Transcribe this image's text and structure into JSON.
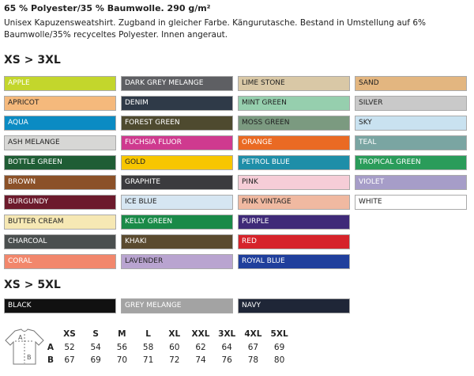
{
  "header": {
    "title": "65 % Polyester/35 % Baumwolle. 290 g/m²",
    "description": "Unisex Kapuzensweatshirt. Zugband in gleicher Farbe. Kängurutasche. Bestand in Umstellung auf 6% Baumwolle/35% recyceltes Polyester. Innen angeraut."
  },
  "sections": [
    {
      "heading": "XS > 3XL",
      "columns": [
        [
          {
            "name": "APPLE",
            "color": "#c3d62c",
            "text_color": "#ffffff"
          },
          {
            "name": "APRICOT",
            "color": "#f5b97c",
            "text_color": "#222222"
          },
          {
            "name": "AQUA",
            "color": "#0b8bc3",
            "text_color": "#ffffff"
          },
          {
            "name": "ASH MELANGE",
            "color": "#d7d7d5",
            "text_color": "#222222"
          },
          {
            "name": "BOTTLE GREEN",
            "color": "#1f5d35",
            "text_color": "#ffffff"
          },
          {
            "name": "BROWN",
            "color": "#8b5128",
            "text_color": "#ffffff"
          },
          {
            "name": "BURGUNDY",
            "color": "#6c1a2c",
            "text_color": "#ffffff"
          },
          {
            "name": "BUTTER CREAM",
            "color": "#f6e8b4",
            "text_color": "#222222"
          },
          {
            "name": "CHARCOAL",
            "color": "#4a4f4f",
            "text_color": "#ffffff"
          },
          {
            "name": "CORAL",
            "color": "#f2876c",
            "text_color": "#ffffff"
          }
        ],
        [
          {
            "name": "DARK GREY MELANGE",
            "color": "#5e5f63",
            "text_color": "#ffffff"
          },
          {
            "name": "DENIM",
            "color": "#2f3a48",
            "text_color": "#ffffff"
          },
          {
            "name": "FOREST GREEN",
            "color": "#4e4a2f",
            "text_color": "#ffffff"
          },
          {
            "name": "FUCHSIA FLUOR",
            "color": "#cf3a8f",
            "text_color": "#ffffff"
          },
          {
            "name": "GOLD",
            "color": "#f7c600",
            "text_color": "#222222"
          },
          {
            "name": "GRAPHITE",
            "color": "#3b3b3e",
            "text_color": "#ffffff"
          },
          {
            "name": "ICE BLUE",
            "color": "#d6e6f2",
            "text_color": "#222222"
          },
          {
            "name": "KELLY GREEN",
            "color": "#1a8a48",
            "text_color": "#ffffff"
          },
          {
            "name": "KHAKI",
            "color": "#5a4a2f",
            "text_color": "#ffffff"
          },
          {
            "name": "LAVENDER",
            "color": "#b9a4d0",
            "text_color": "#222222"
          }
        ],
        [
          {
            "name": "LIME STONE",
            "color": "#d9c8a6",
            "text_color": "#222222"
          },
          {
            "name": "MINT GREEN",
            "color": "#96cfae",
            "text_color": "#222222"
          },
          {
            "name": "MOSS GREEN",
            "color": "#7b9a80",
            "text_color": "#222222"
          },
          {
            "name": "ORANGE",
            "color": "#ea6a23",
            "text_color": "#ffffff"
          },
          {
            "name": "PETROL BLUE",
            "color": "#1e8ea8",
            "text_color": "#ffffff"
          },
          {
            "name": "PINK",
            "color": "#f6cdd7",
            "text_color": "#222222"
          },
          {
            "name": "PINK VINTAGE",
            "color": "#f0b9a1",
            "text_color": "#222222"
          },
          {
            "name": "PURPLE",
            "color": "#3f2a78",
            "text_color": "#ffffff"
          },
          {
            "name": "RED",
            "color": "#d6232b",
            "text_color": "#ffffff"
          },
          {
            "name": "ROYAL BLUE",
            "color": "#203f9c",
            "text_color": "#ffffff"
          }
        ],
        [
          {
            "name": "SAND",
            "color": "#e3b680",
            "text_color": "#222222"
          },
          {
            "name": "SILVER",
            "color": "#c9c9c9",
            "text_color": "#222222"
          },
          {
            "name": "SKY",
            "color": "#c9e2f0",
            "text_color": "#222222"
          },
          {
            "name": "TEAL",
            "color": "#7aa5a2",
            "text_color": "#ffffff"
          },
          {
            "name": "TROPICAL GREEN",
            "color": "#2a9c5a",
            "text_color": "#ffffff"
          },
          {
            "name": "VIOLET",
            "color": "#a69dc8",
            "text_color": "#ffffff"
          },
          {
            "name": "WHITE",
            "color": "#ffffff",
            "text_color": "#222222"
          }
        ]
      ]
    },
    {
      "heading": "XS > 5XL",
      "columns": [
        [
          {
            "name": "BLACK",
            "color": "#111111",
            "text_color": "#ffffff"
          }
        ],
        [
          {
            "name": "GREY MELANGE",
            "color": "#a3a3a3",
            "text_color": "#ffffff"
          }
        ],
        [
          {
            "name": "NAVY",
            "color": "#1f2637",
            "text_color": "#ffffff"
          }
        ]
      ]
    }
  ],
  "size_table": {
    "sizes": [
      "XS",
      "S",
      "M",
      "L",
      "XL",
      "XXL",
      "3XL",
      "4XL",
      "5XL"
    ],
    "rows": [
      {
        "label": "A",
        "values": [
          52,
          54,
          56,
          58,
          60,
          62,
          64,
          67,
          69
        ]
      },
      {
        "label": "B",
        "values": [
          67,
          69,
          70,
          71,
          72,
          74,
          76,
          78,
          80
        ]
      }
    ]
  }
}
